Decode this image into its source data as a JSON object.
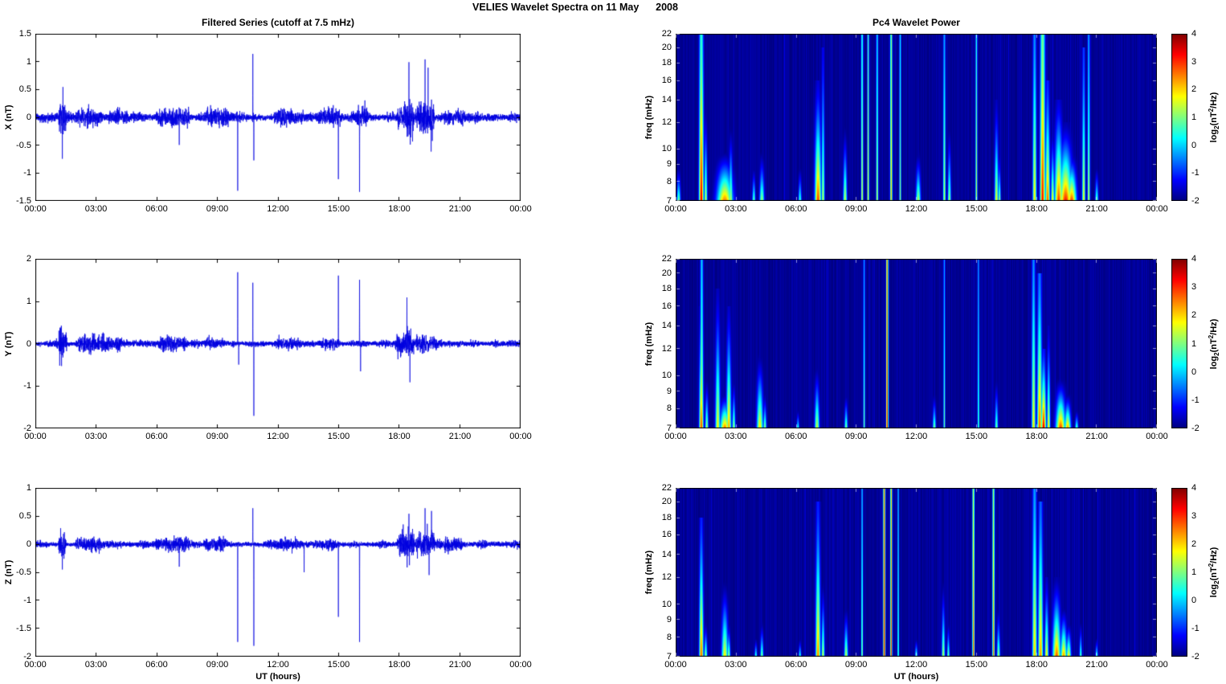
{
  "figure_title": "VELIES Wavelet Spectra on 11 May      2008",
  "time_axis": {
    "xlabel": "UT (hours)",
    "tick_hours": [
      0,
      3,
      6,
      9,
      12,
      15,
      18,
      21,
      24
    ],
    "tick_labels": [
      "00:00",
      "03:00",
      "06:00",
      "09:00",
      "12:00",
      "15:00",
      "18:00",
      "21:00",
      "00:00"
    ],
    "range_hours": [
      0,
      24
    ]
  },
  "colorbar": {
    "clim": [
      -2,
      4
    ],
    "ticks": [
      4,
      3,
      2,
      1,
      0,
      -1,
      -2
    ],
    "label": "log2(nT^2/Hz)",
    "label_parts": [
      {
        "text": "log"
      },
      {
        "text": "2",
        "style": "sub"
      },
      {
        "text": "(nT"
      },
      {
        "text": "2",
        "style": "sup"
      },
      {
        "text": "/Hz)"
      }
    ]
  },
  "event_fields": [
    "t_hours",
    "width_hours",
    "fmax_mHz",
    "peak_log2_power",
    "taper"
  ],
  "burst_fields": [
    "t_start_hours",
    "t_end_hours",
    "amplitude_nT"
  ],
  "spike_fields": [
    "t_hours",
    "value_nT"
  ],
  "chart_data": [
    {
      "id": "ts_x",
      "type": "line",
      "title": "Filtered Series (cutoff at 7.5 mHz)",
      "ylabel": "X (nT)",
      "ylim": [
        -1.5,
        1.5
      ],
      "yticks": [
        -1.5,
        -1,
        -0.5,
        0,
        0.5,
        1,
        1.5
      ],
      "line_color": "#0000DF",
      "seed": 11,
      "noise_base": 0.055,
      "bursts": [
        [
          1.1,
          1.5,
          0.2
        ],
        [
          1.9,
          3.3,
          0.09
        ],
        [
          3.5,
          4.6,
          0.05
        ],
        [
          5.9,
          7.7,
          0.1
        ],
        [
          8.3,
          9.6,
          0.08
        ],
        [
          11.8,
          13.3,
          0.07
        ],
        [
          13.9,
          15.2,
          0.08
        ],
        [
          15.9,
          16.5,
          0.1
        ],
        [
          17.9,
          18.2,
          0.12
        ],
        [
          18.2,
          18.8,
          0.28
        ],
        [
          18.8,
          19.8,
          0.22
        ],
        [
          20.2,
          21.3,
          0.07
        ]
      ],
      "spikes": [
        [
          1.3,
          -0.75
        ],
        [
          1.33,
          0.55
        ],
        [
          7.1,
          -0.5
        ],
        [
          10.0,
          -1.33
        ],
        [
          10.75,
          1.15
        ],
        [
          10.8,
          -0.78
        ],
        [
          15.0,
          -1.12
        ],
        [
          16.05,
          -1.35
        ],
        [
          18.5,
          1.0
        ],
        [
          19.3,
          1.05
        ],
        [
          19.45,
          0.9
        ],
        [
          19.6,
          -0.62
        ]
      ]
    },
    {
      "id": "sp_x",
      "type": "heatmap",
      "title": "Pc4 Wavelet Power",
      "ylabel": "freq (mHz)",
      "ylim": [
        7,
        22
      ],
      "yscale": "log",
      "yticks": [
        7,
        8,
        9,
        10,
        12,
        14,
        16,
        18,
        20,
        22
      ],
      "clim": [
        -2,
        4
      ],
      "seed": 21,
      "events": [
        [
          0.15,
          0.12,
          9,
          1.2,
          1
        ],
        [
          1.28,
          0.14,
          22,
          3.6,
          0.55
        ],
        [
          1.5,
          0.1,
          14,
          1.6,
          1
        ],
        [
          2.45,
          0.5,
          10,
          2.6,
          1
        ],
        [
          2.75,
          0.12,
          12,
          1.5,
          1
        ],
        [
          3.9,
          0.1,
          9,
          1.0,
          1
        ],
        [
          4.3,
          0.15,
          10,
          1.3,
          1
        ],
        [
          6.2,
          0.1,
          9,
          0.8,
          1
        ],
        [
          7.1,
          0.2,
          16,
          3.0,
          0.9
        ],
        [
          7.35,
          0.1,
          20,
          1.5,
          0.8
        ],
        [
          8.45,
          0.12,
          12,
          1.6,
          1
        ],
        [
          9.3,
          0.07,
          22,
          1.6,
          0.3
        ],
        [
          9.6,
          0.06,
          22,
          1.8,
          0.3
        ],
        [
          10.05,
          0.07,
          22,
          1.5,
          0.4
        ],
        [
          10.75,
          0.07,
          22,
          2.2,
          0.25
        ],
        [
          11.2,
          0.06,
          22,
          1.1,
          0.3
        ],
        [
          12.1,
          0.15,
          10,
          1.5,
          1
        ],
        [
          13.4,
          0.08,
          22,
          1.5,
          0.5
        ],
        [
          13.65,
          0.1,
          12,
          1.4,
          1
        ],
        [
          15.0,
          0.06,
          22,
          1.5,
          0.3
        ],
        [
          16.0,
          0.12,
          14,
          1.8,
          0.9
        ],
        [
          16.15,
          0.08,
          10,
          1.4,
          1
        ],
        [
          17.9,
          0.12,
          22,
          2.0,
          0.6
        ],
        [
          18.3,
          0.16,
          22,
          3.3,
          0.45
        ],
        [
          18.55,
          0.14,
          16,
          2.8,
          0.8
        ],
        [
          18.8,
          0.1,
          12,
          2.0,
          1
        ],
        [
          19.1,
          0.25,
          14,
          3.0,
          0.9
        ],
        [
          19.45,
          0.4,
          12,
          3.2,
          0.95
        ],
        [
          19.75,
          0.3,
          10,
          3.0,
          1
        ],
        [
          20.35,
          0.1,
          20,
          1.8,
          0.7
        ],
        [
          20.6,
          0.08,
          22,
          1.5,
          0.5
        ],
        [
          21.0,
          0.1,
          9,
          1.0,
          1
        ]
      ]
    },
    {
      "id": "ts_y",
      "type": "line",
      "title": "",
      "ylabel": "Y (nT)",
      "ylim": [
        -2,
        2
      ],
      "yticks": [
        -2,
        -1,
        0,
        1,
        2
      ],
      "line_color": "#0000DF",
      "seed": 12,
      "noise_base": 0.06,
      "bursts": [
        [
          1.1,
          1.55,
          0.28
        ],
        [
          1.9,
          4.3,
          0.11
        ],
        [
          6.0,
          7.6,
          0.07
        ],
        [
          8.3,
          9.4,
          0.06
        ],
        [
          11.9,
          13.2,
          0.05
        ],
        [
          14.0,
          15.1,
          0.05
        ],
        [
          17.8,
          18.8,
          0.22
        ],
        [
          18.8,
          19.4,
          0.15
        ],
        [
          19.4,
          19.9,
          0.1
        ]
      ],
      "spikes": [
        [
          10.0,
          1.7
        ],
        [
          10.05,
          -0.5
        ],
        [
          10.75,
          1.45
        ],
        [
          10.8,
          -1.72
        ],
        [
          15.0,
          1.62
        ],
        [
          16.05,
          1.52
        ],
        [
          16.1,
          -0.66
        ],
        [
          18.4,
          1.1
        ],
        [
          18.55,
          -0.92
        ]
      ]
    },
    {
      "id": "sp_y",
      "type": "heatmap",
      "title": "",
      "ylabel": "freq (mHz)",
      "ylim": [
        7,
        22
      ],
      "yscale": "log",
      "yticks": [
        7,
        8,
        9,
        10,
        12,
        14,
        16,
        18,
        20,
        22
      ],
      "clim": [
        -2,
        4
      ],
      "seed": 22,
      "events": [
        [
          1.28,
          0.13,
          16,
          3.0,
          0.8
        ],
        [
          1.3,
          0.1,
          22,
          2.0,
          0.5
        ],
        [
          1.55,
          0.1,
          10,
          1.5,
          1
        ],
        [
          2.1,
          0.15,
          18,
          1.9,
          0.9
        ],
        [
          2.45,
          0.3,
          9,
          2.7,
          1
        ],
        [
          2.65,
          0.15,
          16,
          2.4,
          0.9
        ],
        [
          2.9,
          0.1,
          10,
          1.4,
          1
        ],
        [
          4.2,
          0.2,
          12,
          2.0,
          1
        ],
        [
          4.45,
          0.1,
          9,
          1.3,
          1
        ],
        [
          6.1,
          0.08,
          8,
          0.8,
          1
        ],
        [
          7.05,
          0.15,
          11,
          1.6,
          1
        ],
        [
          8.5,
          0.1,
          9,
          1.2,
          1
        ],
        [
          9.4,
          0.06,
          22,
          0.9,
          0.4
        ],
        [
          10.55,
          0.07,
          22,
          3.3,
          0.15
        ],
        [
          12.9,
          0.1,
          9,
          1.2,
          1
        ],
        [
          13.4,
          0.06,
          22,
          0.9,
          0.4
        ],
        [
          15.1,
          0.06,
          22,
          0.8,
          0.4
        ],
        [
          16.0,
          0.1,
          10,
          1.1,
          1
        ],
        [
          17.85,
          0.12,
          22,
          2.0,
          0.6
        ],
        [
          18.15,
          0.15,
          20,
          2.8,
          0.7
        ],
        [
          18.35,
          0.15,
          12,
          3.6,
          0.85
        ],
        [
          18.6,
          0.1,
          14,
          2.0,
          0.9
        ],
        [
          19.2,
          0.3,
          10,
          3.0,
          1
        ],
        [
          19.55,
          0.2,
          9,
          2.5,
          1
        ],
        [
          20.0,
          0.1,
          8,
          1.0,
          1
        ]
      ]
    },
    {
      "id": "ts_z",
      "type": "line",
      "title": "",
      "ylabel": "Z (nT)",
      "ylim": [
        -2,
        1
      ],
      "yticks": [
        -2,
        -1.5,
        -1,
        -0.5,
        0,
        0.5,
        1
      ],
      "line_color": "#0000DF",
      "seed": 13,
      "noise_base": 0.045,
      "bursts": [
        [
          1.1,
          1.5,
          0.16
        ],
        [
          1.9,
          3.3,
          0.07
        ],
        [
          5.9,
          7.7,
          0.07
        ],
        [
          8.3,
          9.5,
          0.06
        ],
        [
          11.8,
          13.3,
          0.05
        ],
        [
          14.0,
          15.1,
          0.05
        ],
        [
          17.9,
          18.8,
          0.2
        ],
        [
          18.8,
          19.8,
          0.16
        ],
        [
          20.2,
          21.2,
          0.05
        ]
      ],
      "spikes": [
        [
          1.3,
          -0.45
        ],
        [
          7.1,
          -0.4
        ],
        [
          10.0,
          -1.75
        ],
        [
          10.75,
          0.65
        ],
        [
          10.8,
          -1.82
        ],
        [
          13.3,
          -0.5
        ],
        [
          15.0,
          -1.3
        ],
        [
          16.05,
          -1.75
        ],
        [
          18.5,
          0.55
        ],
        [
          19.3,
          0.65
        ],
        [
          19.5,
          -0.55
        ],
        [
          19.62,
          0.6
        ]
      ]
    },
    {
      "id": "sp_z",
      "type": "heatmap",
      "title": "",
      "ylabel": "freq (mHz)",
      "ylim": [
        7,
        22
      ],
      "yscale": "log",
      "yticks": [
        7,
        8,
        9,
        10,
        12,
        14,
        16,
        18,
        20,
        22
      ],
      "clim": [
        -2,
        4
      ],
      "seed": 23,
      "events": [
        [
          1.28,
          0.13,
          18,
          2.8,
          0.8
        ],
        [
          1.5,
          0.1,
          9,
          1.4,
          1
        ],
        [
          2.45,
          0.2,
          12,
          1.9,
          1
        ],
        [
          2.65,
          0.1,
          9,
          1.4,
          1
        ],
        [
          4.0,
          0.08,
          8,
          0.9,
          1
        ],
        [
          4.3,
          0.1,
          9,
          1.2,
          1
        ],
        [
          6.2,
          0.08,
          8,
          0.8,
          1
        ],
        [
          7.1,
          0.15,
          20,
          2.6,
          0.8
        ],
        [
          7.35,
          0.1,
          12,
          1.6,
          1
        ],
        [
          8.5,
          0.12,
          10,
          1.6,
          1
        ],
        [
          9.3,
          0.06,
          22,
          1.2,
          0.4
        ],
        [
          10.4,
          0.07,
          22,
          3.4,
          0.12
        ],
        [
          10.75,
          0.06,
          22,
          3.0,
          0.18
        ],
        [
          11.1,
          0.05,
          22,
          0.9,
          0.3
        ],
        [
          12.0,
          0.08,
          8,
          1.0,
          1
        ],
        [
          13.35,
          0.1,
          12,
          1.5,
          1
        ],
        [
          13.6,
          0.08,
          9,
          1.2,
          1
        ],
        [
          14.85,
          0.07,
          22,
          2.9,
          0.3
        ],
        [
          15.85,
          0.07,
          22,
          2.7,
          0.3
        ],
        [
          16.1,
          0.1,
          10,
          1.4,
          1
        ],
        [
          17.9,
          0.14,
          22,
          2.2,
          0.6
        ],
        [
          18.2,
          0.15,
          20,
          2.5,
          0.7
        ],
        [
          18.5,
          0.12,
          12,
          2.0,
          0.9
        ],
        [
          19.0,
          0.25,
          12,
          2.8,
          0.95
        ],
        [
          19.35,
          0.2,
          10,
          2.5,
          1
        ],
        [
          19.6,
          0.15,
          9,
          2.0,
          1
        ],
        [
          20.2,
          0.08,
          9,
          1.0,
          1
        ],
        [
          21.0,
          0.08,
          8,
          0.9,
          1
        ]
      ]
    }
  ]
}
